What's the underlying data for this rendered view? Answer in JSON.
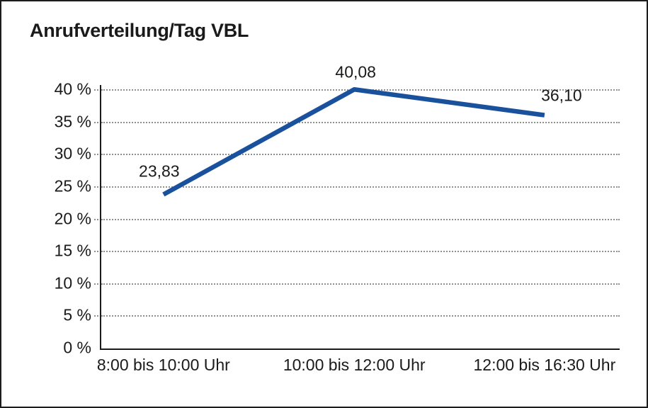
{
  "chart_data": {
    "type": "line",
    "title": "Anrufverteilung/Tag VBL",
    "categories": [
      "8:00 bis 10:00 Uhr",
      "10:00 bis 12:00 Uhr",
      "12:00 bis 16:30 Uhr"
    ],
    "values": [
      23.83,
      40.08,
      36.1
    ],
    "point_labels": [
      "23,83",
      "40,08",
      "36,10"
    ],
    "xlabel": "",
    "ylabel": "",
    "ylim": [
      0,
      40
    ],
    "ytick_step": 5,
    "ytick_labels": [
      "0 %",
      "5 %",
      "10 %",
      "15 %",
      "20 %",
      "25 %",
      "30 %",
      "35 %",
      "40 %"
    ],
    "grid": "horizontal-dotted",
    "legend_position": "none",
    "line_color": "#1a519c",
    "axis_color": "#1a1a1a",
    "grid_color": "#8f8f8f",
    "text_color": "#1a1a1a"
  }
}
